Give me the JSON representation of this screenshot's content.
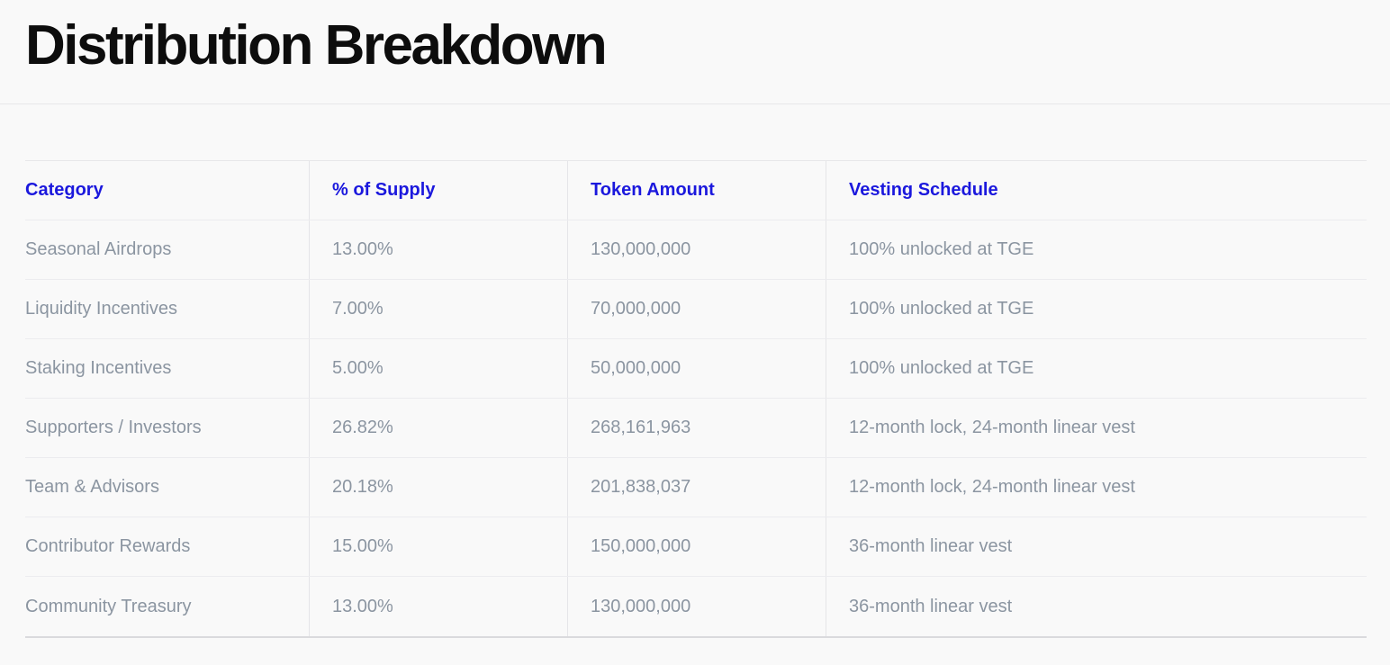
{
  "page": {
    "title": "Distribution Breakdown"
  },
  "table": {
    "headers": [
      "Category",
      "% of Supply",
      "Token Amount",
      "Vesting Schedule"
    ],
    "rows": [
      {
        "category": "Seasonal Airdrops",
        "supply": "13.00%",
        "amount": "130,000,000",
        "vesting": "100% unlocked at TGE"
      },
      {
        "category": "Liquidity Incentives",
        "supply": "7.00%",
        "amount": "70,000,000",
        "vesting": "100% unlocked at TGE"
      },
      {
        "category": "Staking Incentives",
        "supply": "5.00%",
        "amount": "50,000,000",
        "vesting": "100% unlocked at TGE"
      },
      {
        "category": "Supporters / Investors",
        "supply": "26.82%",
        "amount": "268,161,963",
        "vesting": "12-month lock, 24-month linear vest"
      },
      {
        "category": "Team & Advisors",
        "supply": "20.18%",
        "amount": "201,838,037",
        "vesting": "12-month lock, 24-month linear vest"
      },
      {
        "category": "Contributor Rewards",
        "supply": "15.00%",
        "amount": "150,000,000",
        "vesting": "36-month linear vest"
      },
      {
        "category": "Community Treasury",
        "supply": "13.00%",
        "amount": "130,000,000",
        "vesting": "36-month linear vest"
      }
    ]
  },
  "colors": {
    "accent_blue": "#1b18dd",
    "body_text_gray": "#8b95a1",
    "title_black": "#0d0d0d",
    "background": "#f9f9f9",
    "row_divider": "#ececef",
    "column_divider": "#e5e5e8",
    "table_bottom_border": "#dadadd"
  }
}
